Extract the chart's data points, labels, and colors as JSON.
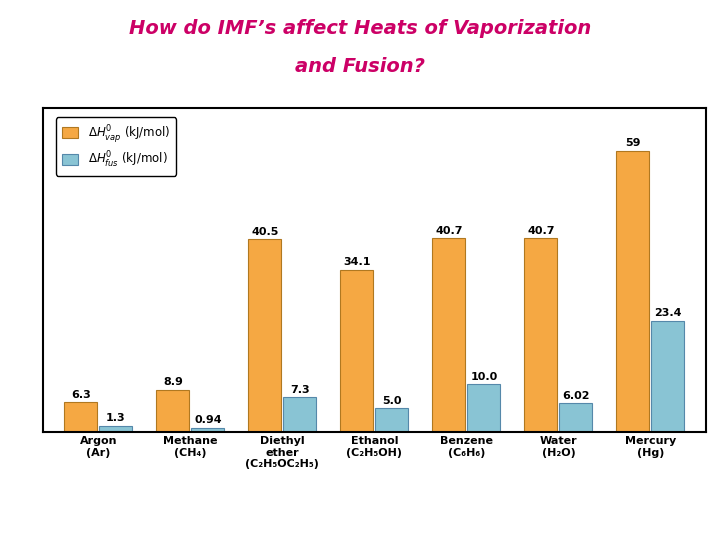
{
  "title_line1": "How do IMF’s affect Heats of Vaporization",
  "title_line2": "and Fusion?",
  "title_color": "#cc0066",
  "categories": [
    "Argon\n(Ar)",
    "Methane\n(CH₄)",
    "Diethyl\nether\n(C₂H₅OC₂H₅)",
    "Ethanol\n(C₂H₅OH)",
    "Benzene\n(C₆H₆)",
    "Water\n(H₂O)",
    "Mercury\n(Hg)"
  ],
  "vap_values": [
    6.3,
    8.9,
    40.5,
    34.1,
    40.7,
    40.7,
    59.0
  ],
  "fus_values": [
    1.3,
    0.94,
    7.3,
    5.0,
    10.0,
    6.02,
    23.4
  ],
  "vap_labels": [
    "6.3",
    "8.9",
    "40.5",
    "34.1",
    "40.7",
    "40.7",
    "59"
  ],
  "fus_labels": [
    "1.3",
    "0.94",
    "7.3",
    "5.0",
    "10.0",
    "6.02",
    "23.4"
  ],
  "vap_color": "#f5a843",
  "fus_color": "#89c4d4",
  "background_color": "#ffffff",
  "ylim": [
    0,
    68
  ],
  "water_vap": 40.7,
  "water_vap_label": "40.7"
}
